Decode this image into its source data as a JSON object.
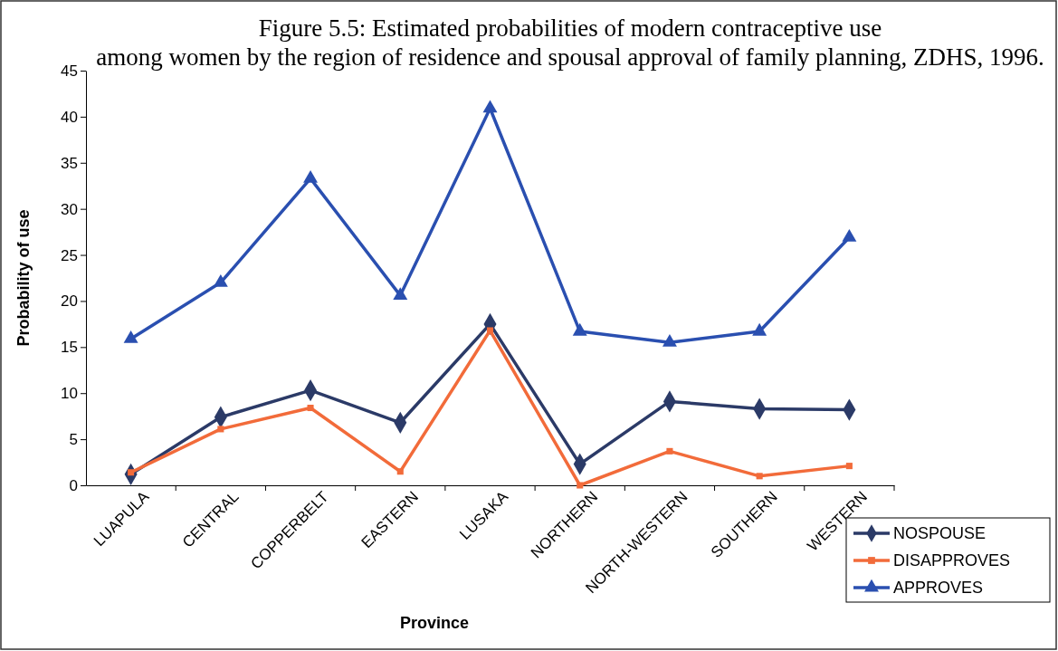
{
  "chart_data": {
    "type": "line",
    "title": "Figure 5.5: Estimated probabilities of modern contraceptive use among women by the region of residence and spousal approval of family planning, ZDHS, 1996.",
    "xlabel": "Province",
    "ylabel": "Probability of use",
    "categories": [
      "LUAPULA",
      "CENTRAL",
      "COPPERBELT",
      "EASTERN",
      "LUSAKA",
      "NORTHERN",
      "NORTH-WESTERN",
      "SOUTHERN",
      "WESTERN"
    ],
    "series": [
      {
        "name": "NOSPOUSE",
        "color": "#2b3a67",
        "marker": "diamond",
        "values": [
          1.2,
          7.4,
          10.3,
          6.8,
          17.5,
          2.3,
          9.1,
          8.3,
          8.2
        ]
      },
      {
        "name": "DISAPPROVES",
        "color": "#f26b3a",
        "marker": "square",
        "values": [
          1.4,
          6.1,
          8.4,
          1.5,
          16.8,
          0,
          3.7,
          1.0,
          2.1
        ]
      },
      {
        "name": "APPROVES",
        "color": "#2a4fb0",
        "marker": "triangle",
        "values": [
          15.9,
          22.0,
          33.3,
          20.6,
          40.9,
          16.7,
          15.5,
          16.7,
          26.9
        ]
      }
    ],
    "ylim": [
      0,
      45
    ],
    "yticks": [
      0,
      5,
      10,
      15,
      20,
      25,
      30,
      35,
      40,
      45
    ],
    "grid": false,
    "legend": "bottom right",
    "line_style": "solid"
  }
}
